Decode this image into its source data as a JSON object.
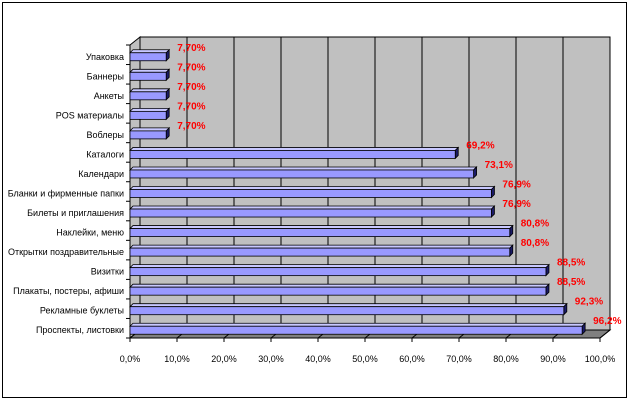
{
  "chart_data": {
    "type": "bar",
    "orientation": "horizontal",
    "categories": [
      "Упаковка",
      "Баннеры",
      "Анкеты",
      "POS материалы",
      "Воблеры",
      "Каталоги",
      "Календари",
      "Бланки и фирменные папки",
      "Билеты и приглашения",
      "Наклейки, меню",
      "Открытки поздравительные",
      "Визитки",
      "Плакаты, постеры, афиши",
      "Рекламные буклеты",
      "Проспекты, листовки"
    ],
    "values": [
      7.7,
      7.7,
      7.7,
      7.7,
      7.7,
      69.2,
      73.1,
      76.9,
      76.9,
      80.8,
      80.8,
      88.5,
      88.5,
      92.3,
      96.2
    ],
    "data_labels": [
      "7,70%",
      "7,70%",
      "7,70%",
      "7,70%",
      "7,70%",
      "69,2%",
      "73,1%",
      "76,9%",
      "76,9%",
      "80,8%",
      "80,8%",
      "88,5%",
      "88,5%",
      "92,3%",
      "96,2%"
    ],
    "xlim": [
      0,
      100
    ],
    "x_ticks": [
      "0,0%",
      "10,0%",
      "20,0%",
      "30,0%",
      "40,0%",
      "50,0%",
      "60,0%",
      "70,0%",
      "80,0%",
      "90,0%",
      "100,0%"
    ],
    "grid": "vertical",
    "legend": "none",
    "title": "",
    "xlabel": "",
    "ylabel": "",
    "colors": {
      "bar_front": "#9999ff",
      "bar_top": "#c8c8ff",
      "bar_side": "#1a1a66",
      "plot_back": "#c0c0c0",
      "plot_floor": "#808080",
      "label": "#ff0000"
    }
  }
}
